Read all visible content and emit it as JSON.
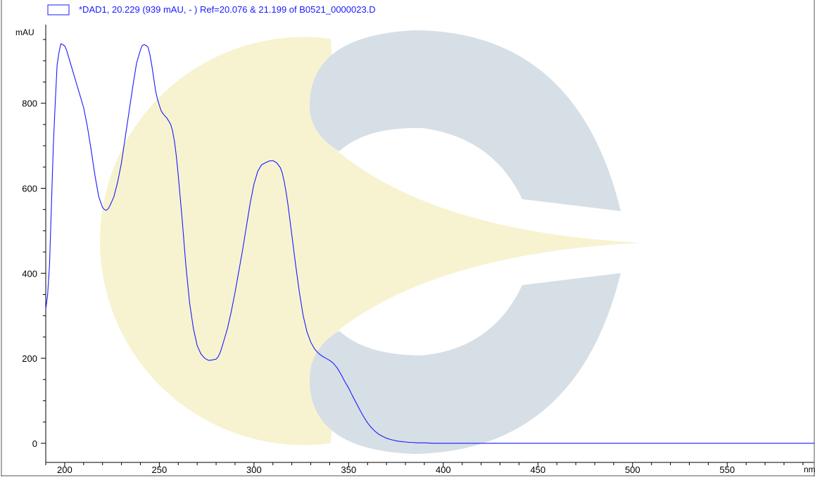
{
  "colors": {
    "trace": "#1a1aff",
    "legend_text": "#1a1aff",
    "axis": "#000000",
    "text": "#000000",
    "watermark_grey": "#d6dfe6",
    "watermark_yellow": "#f7f3d0"
  },
  "watermark": {
    "name": "c-logo-watermark"
  },
  "chart_data": {
    "type": "line",
    "title": "",
    "legend": {
      "placement": "top-left",
      "text": "*DAD1, 20.229 (939 mAU, - ) Ref=20.076 & 21.199 of B0521_0000023.D"
    },
    "ylabel": "mAU",
    "xlabel": "nm",
    "xlim": [
      190,
      596
    ],
    "ylim": [
      -45,
      985
    ],
    "x_ticks": [
      200,
      250,
      300,
      350,
      400,
      450,
      500,
      550
    ],
    "y_ticks": [
      0,
      200,
      400,
      600,
      800
    ],
    "grid": false,
    "series": [
      {
        "name": "*DAD1, 20.229 (939 mAU, - ) Ref=20.076 & 21.199 of B0521_0000023.D",
        "x": [
          190,
          191,
          192,
          193,
          194,
          195,
          196,
          197,
          198,
          199,
          200,
          201,
          202,
          204,
          206,
          208,
          210,
          212,
          214,
          216,
          218,
          220,
          221,
          222,
          223,
          224,
          226,
          228,
          230,
          232,
          234,
          236,
          238,
          240,
          241,
          242,
          243,
          244,
          245,
          246,
          247,
          248,
          249,
          250,
          251,
          252,
          253,
          254,
          255,
          256,
          257,
          258,
          259,
          260,
          262,
          264,
          266,
          268,
          270,
          272,
          274,
          276,
          278,
          280,
          281,
          282,
          283,
          284,
          286,
          288,
          290,
          292,
          294,
          296,
          298,
          300,
          302,
          304,
          306,
          308,
          310,
          312,
          314,
          315,
          316,
          317,
          318,
          319,
          320,
          322,
          324,
          326,
          328,
          330,
          332,
          334,
          336,
          338,
          340,
          342,
          344,
          346,
          348,
          350,
          352,
          354,
          356,
          358,
          360,
          362,
          364,
          366,
          368,
          370,
          372,
          374,
          376,
          378,
          380,
          382,
          384,
          386,
          388,
          390,
          395,
          400,
          405,
          410,
          415,
          420,
          430,
          440,
          450,
          460,
          480,
          500,
          520,
          540,
          560,
          580,
          596
        ],
        "values": [
          315,
          350,
          420,
          560,
          700,
          800,
          890,
          920,
          940,
          938,
          935,
          925,
          910,
          880,
          850,
          820,
          790,
          745,
          690,
          630,
          580,
          555,
          550,
          548,
          552,
          560,
          580,
          615,
          660,
          720,
          780,
          840,
          895,
          925,
          936,
          938,
          936,
          932,
          915,
          890,
          860,
          830,
          810,
          795,
          782,
          775,
          770,
          765,
          758,
          750,
          735,
          710,
          675,
          630,
          530,
          420,
          330,
          270,
          230,
          210,
          200,
          195,
          196,
          198,
          203,
          212,
          225,
          240,
          270,
          310,
          355,
          405,
          455,
          510,
          565,
          610,
          640,
          655,
          660,
          664,
          665,
          660,
          648,
          635,
          615,
          590,
          560,
          525,
          490,
          420,
          355,
          300,
          262,
          238,
          222,
          212,
          205,
          200,
          195,
          188,
          177,
          162,
          145,
          130,
          112,
          95,
          78,
          62,
          48,
          37,
          28,
          21,
          16,
          12,
          9,
          7,
          5,
          4,
          3,
          2,
          2,
          1,
          1,
          1,
          0,
          0,
          0,
          0,
          0,
          0,
          0,
          0,
          0,
          0,
          0,
          0,
          0,
          0,
          0,
          0,
          0
        ]
      }
    ]
  }
}
